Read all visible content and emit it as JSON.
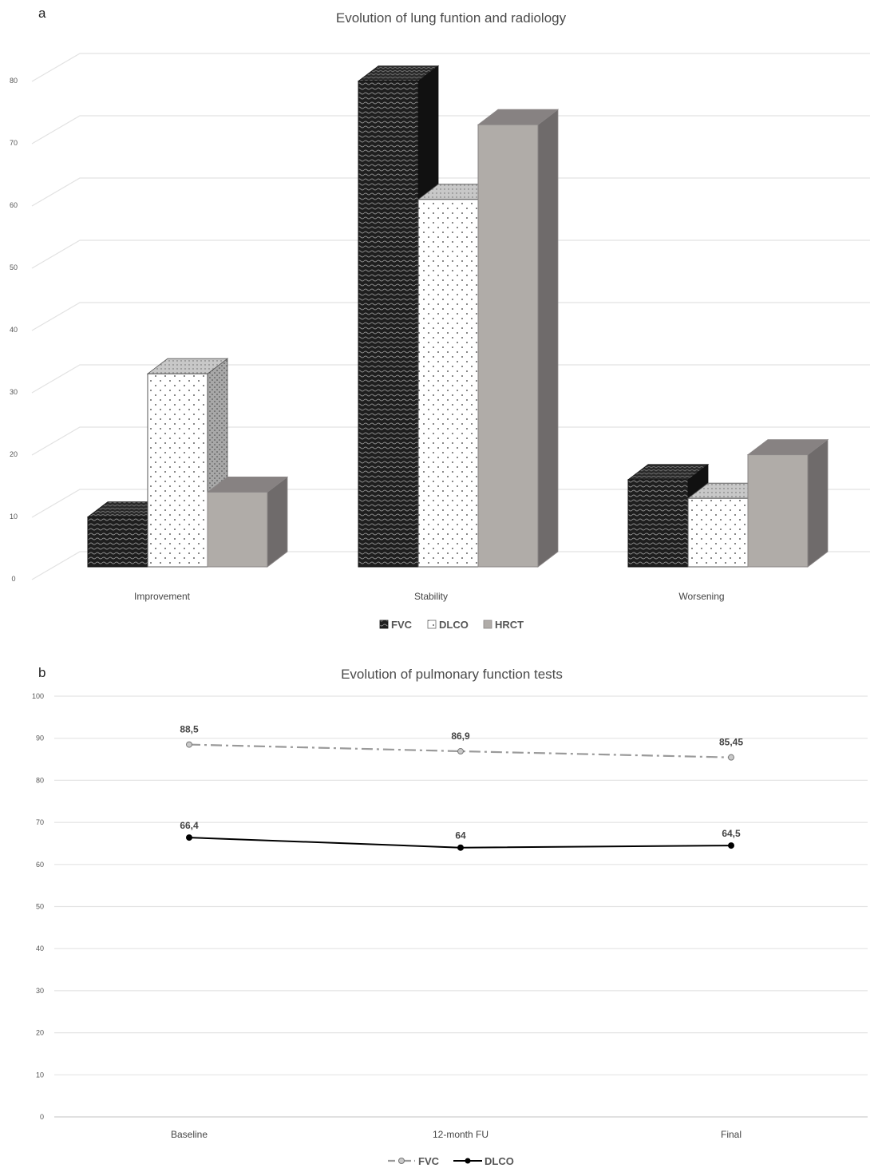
{
  "figure": {
    "panel_a_letter": "a",
    "panel_b_letter": "b"
  },
  "chart_data": [
    {
      "type": "bar",
      "title": "Evolution of lung funtion and radiology",
      "categories": [
        "Improvement",
        "Stability",
        "Worsening"
      ],
      "series": [
        {
          "name": "FVC",
          "values": [
            8,
            78,
            14
          ],
          "color": "#2a2a2a",
          "pattern": "dark-waves"
        },
        {
          "name": "DLCO",
          "values": [
            31,
            59,
            11
          ],
          "color": "#ffffff",
          "pattern": "dots"
        },
        {
          "name": "HRCT",
          "values": [
            12,
            71,
            18
          ],
          "color": "#b0aca8",
          "pattern": "solid"
        }
      ],
      "yticks": [
        0,
        10,
        20,
        30,
        40,
        50,
        60,
        70,
        80
      ],
      "ylim": [
        0,
        80
      ],
      "xlabel": "",
      "ylabel": "",
      "grid": true,
      "legend": "bottom"
    },
    {
      "type": "line",
      "title": "Evolution of pulmonary function tests",
      "categories": [
        "Baseline",
        "12-month FU",
        "Final"
      ],
      "series": [
        {
          "name": "FVC",
          "values": [
            88.5,
            86.9,
            85.45
          ],
          "labels": [
            "88,5",
            "86,9",
            "85,45"
          ],
          "color": "#9a9a9a",
          "style": "dash-dot"
        },
        {
          "name": "DLCO",
          "values": [
            66.4,
            64,
            64.5
          ],
          "labels": [
            "66,4",
            "64",
            "64,5"
          ],
          "color": "#000000",
          "style": "solid"
        }
      ],
      "yticks": [
        0,
        10,
        20,
        30,
        40,
        50,
        60,
        70,
        80,
        90,
        100
      ],
      "ylim": [
        0,
        100
      ],
      "xlabel": "",
      "ylabel": "",
      "grid": true,
      "legend": "bottom"
    }
  ]
}
